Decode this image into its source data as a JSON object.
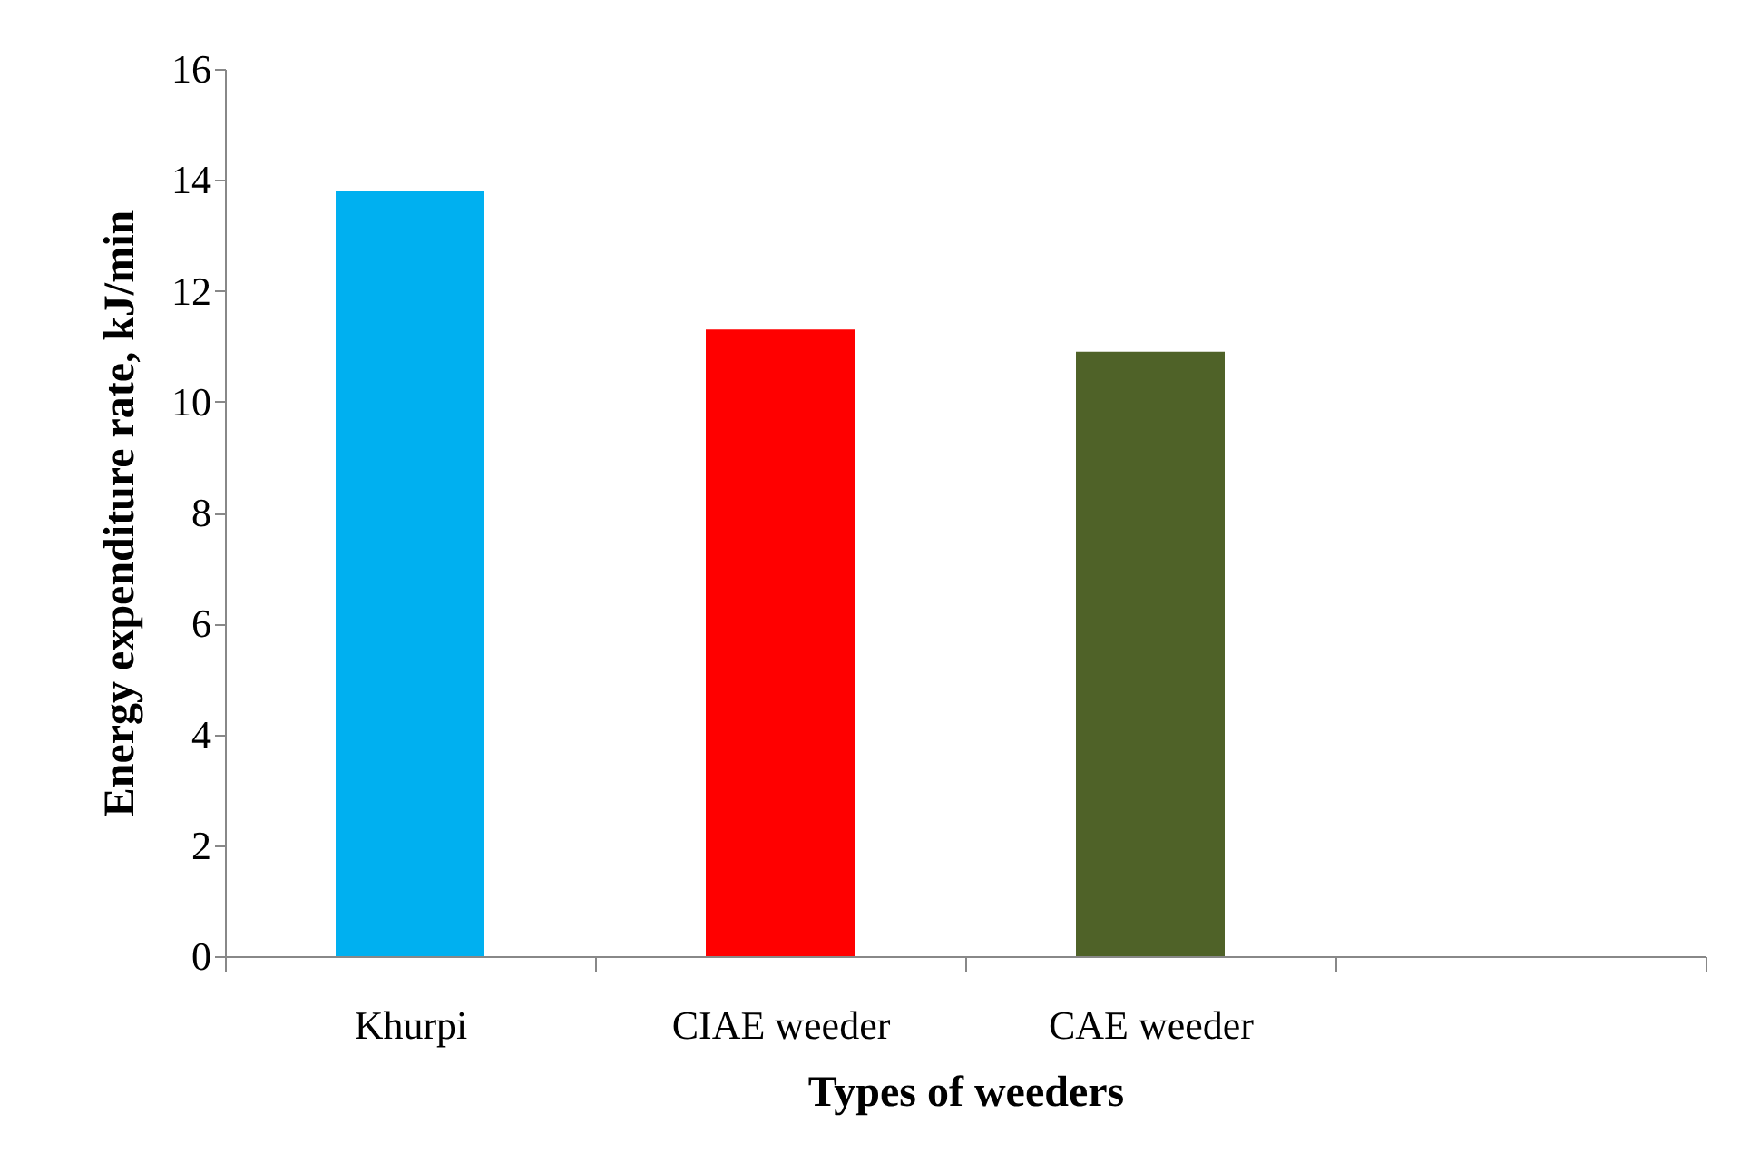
{
  "chart_data": {
    "type": "bar",
    "xlabel": "Types of weeders",
    "ylabel": "Energy expenditure rate, kJ/min",
    "categories": [
      "Khurpi",
      "CIAE weeder",
      "CAE weeder",
      null
    ],
    "values": [
      13.8,
      11.3,
      10.9,
      null
    ],
    "colors": [
      "#00b0f0",
      "#ff0000",
      "#4f6228",
      null
    ],
    "ylim": [
      0,
      16
    ],
    "yticks": [
      0,
      2,
      4,
      6,
      8,
      10,
      12,
      14,
      16
    ],
    "grid": false,
    "legend": false
  }
}
